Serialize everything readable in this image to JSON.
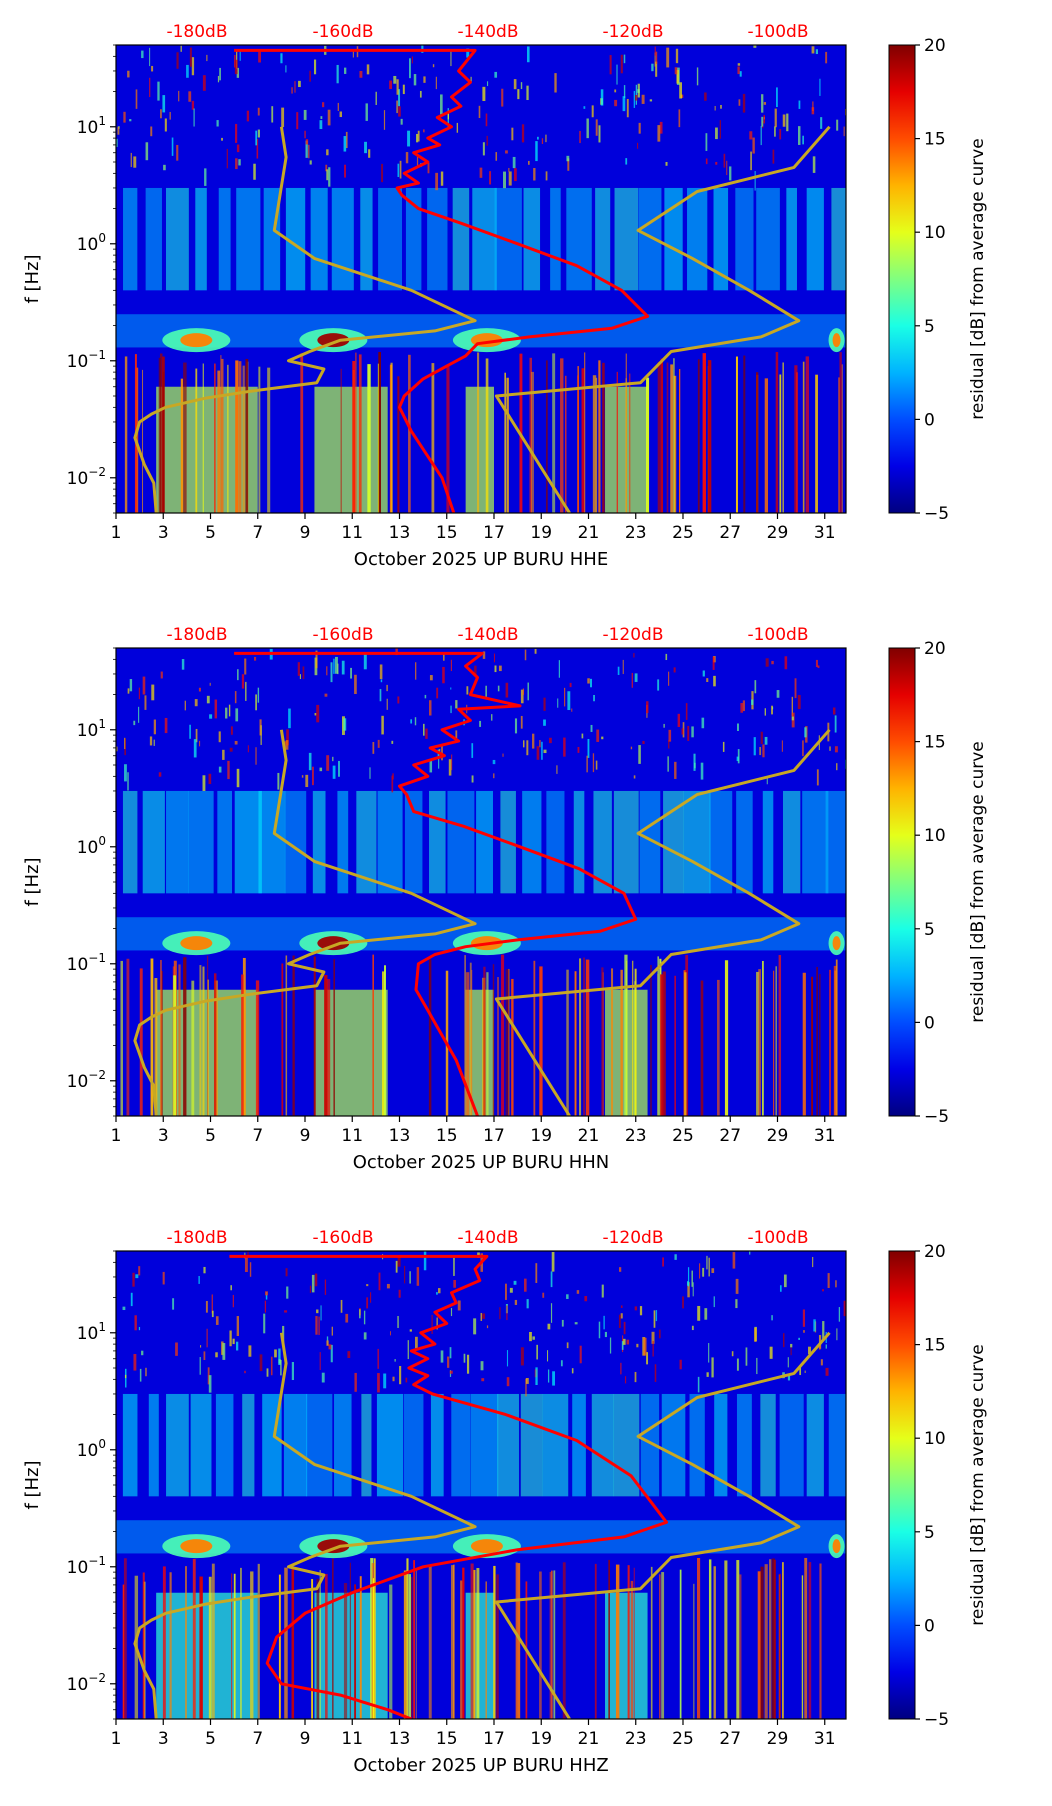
{
  "chart_data": [
    {
      "type": "heatmap",
      "xlabel": "October 2025 UP BURU  HHE",
      "ylabel": "f [Hz]",
      "x_ticks": [
        1,
        3,
        5,
        7,
        9,
        11,
        13,
        15,
        17,
        19,
        21,
        23,
        25,
        27,
        29,
        31
      ],
      "x_range": [
        1,
        31.9
      ],
      "y_scale": "log",
      "y_range": [
        0.005,
        50
      ],
      "y_ticks": [
        {
          "base": "10",
          "exp": "1",
          "value": 10
        },
        {
          "base": "10",
          "exp": "0",
          "value": 1
        },
        {
          "base": "10",
          "exp": "−1",
          "value": 0.1
        },
        {
          "base": "10",
          "exp": "−2",
          "value": 0.01
        }
      ],
      "top_axis": {
        "labels": [
          "-180dB",
          "-160dB",
          "-140dB",
          "-120dB",
          "-100dB"
        ],
        "color": "#ff0000"
      },
      "colorbar": {
        "label": "residual [dB] from average curve",
        "range": [
          -5,
          20
        ],
        "ticks": [
          "20",
          "15",
          "10",
          "5",
          "0",
          "−5"
        ],
        "colormap": "jet"
      },
      "series": [
        {
          "color": "#c8a824",
          "x": [
            8.0,
            8.2,
            7.7,
            9.4,
            13.5,
            16.2,
            14.5,
            10.5,
            9.2,
            8.3,
            9.8,
            9.5,
            6.7,
            4.8,
            3.1,
            2.5,
            2.0,
            1.8,
            2.2,
            2.6,
            2.7
          ],
          "y": [
            10,
            5.5,
            1.3,
            0.75,
            0.4,
            0.22,
            0.18,
            0.15,
            0.12,
            0.1,
            0.085,
            0.065,
            0.055,
            0.048,
            0.04,
            0.035,
            0.03,
            0.022,
            0.013,
            0.009,
            0.005
          ]
        },
        {
          "color": "#c8a824",
          "x": [
            31.2,
            29.7,
            25.6,
            23.1,
            25.4,
            27.8,
            29.9,
            28.3,
            24.5,
            23.2,
            17.1,
            17.1,
            20.2
          ],
          "y": [
            10,
            4.5,
            2.8,
            1.3,
            0.75,
            0.4,
            0.22,
            0.16,
            0.12,
            0.065,
            0.05,
            0.05,
            0.005
          ]
        },
        {
          "color": "#ff0000",
          "x": [
            6.0,
            16.2,
            15.5,
            16.0,
            15.2,
            15.6,
            14.6,
            15.2,
            14.2,
            14.7,
            13.6,
            14.2,
            13.2,
            13.8,
            12.9,
            13.1,
            13.8,
            15.6,
            18.0,
            20.5,
            22.4,
            23.5,
            22.0,
            18.5,
            16.3,
            15.8,
            15.0,
            14.0,
            13.2,
            13.0,
            13.5,
            14.8,
            15.3
          ],
          "y": [
            45,
            45,
            30,
            24,
            18,
            15,
            12,
            10,
            8,
            7,
            6,
            5,
            4,
            3.3,
            3.0,
            2.6,
            2.0,
            1.5,
            1.0,
            0.65,
            0.4,
            0.24,
            0.19,
            0.16,
            0.14,
            0.11,
            0.09,
            0.07,
            0.05,
            0.04,
            0.025,
            0.01,
            0.005
          ]
        }
      ]
    },
    {
      "type": "heatmap",
      "xlabel": "October 2025 UP BURU  HHN",
      "ylabel": "f [Hz]",
      "x_ticks": [
        1,
        3,
        5,
        7,
        9,
        11,
        13,
        15,
        17,
        19,
        21,
        23,
        25,
        27,
        29,
        31
      ],
      "x_range": [
        1,
        31.9
      ],
      "y_scale": "log",
      "y_range": [
        0.005,
        50
      ],
      "y_ticks": [
        {
          "base": "10",
          "exp": "1",
          "value": 10
        },
        {
          "base": "10",
          "exp": "0",
          "value": 1
        },
        {
          "base": "10",
          "exp": "−1",
          "value": 0.1
        },
        {
          "base": "10",
          "exp": "−2",
          "value": 0.01
        }
      ],
      "top_axis": {
        "labels": [
          "-180dB",
          "-160dB",
          "-140dB",
          "-120dB",
          "-100dB"
        ],
        "color": "#ff0000"
      },
      "colorbar": {
        "label": "residual [dB] from average curve",
        "range": [
          -5,
          20
        ],
        "ticks": [
          "20",
          "15",
          "10",
          "5",
          "0",
          "−5"
        ],
        "colormap": "jet"
      },
      "series": [
        {
          "color": "#c8a824",
          "x": [
            8.0,
            8.2,
            7.7,
            9.4,
            13.5,
            16.2,
            14.5,
            10.5,
            9.2,
            8.3,
            9.8,
            9.5,
            6.7,
            4.8,
            3.1,
            2.5,
            2.0,
            1.8,
            2.2,
            2.6,
            2.7
          ],
          "y": [
            10,
            5.5,
            1.3,
            0.75,
            0.4,
            0.22,
            0.18,
            0.15,
            0.12,
            0.1,
            0.085,
            0.065,
            0.055,
            0.048,
            0.04,
            0.035,
            0.03,
            0.022,
            0.013,
            0.009,
            0.005
          ]
        },
        {
          "color": "#c8a824",
          "x": [
            31.2,
            29.7,
            25.6,
            23.1,
            25.4,
            27.8,
            29.9,
            28.3,
            24.5,
            23.2,
            17.1,
            17.1,
            20.2
          ],
          "y": [
            10,
            4.5,
            2.8,
            1.3,
            0.75,
            0.4,
            0.22,
            0.16,
            0.12,
            0.065,
            0.05,
            0.05,
            0.005
          ]
        },
        {
          "color": "#ff0000",
          "x": [
            6.0,
            16.5,
            15.8,
            16.3,
            16.0,
            18.1,
            15.5,
            16.0,
            14.8,
            15.5,
            14.3,
            14.9,
            13.6,
            14.2,
            13.0,
            13.3,
            13.6,
            15.7,
            18.1,
            20.6,
            22.5,
            23.0,
            21.5,
            18.0,
            15.8,
            14.5,
            13.8,
            13.7,
            14.2,
            15.4,
            16.3
          ],
          "y": [
            45,
            45,
            35,
            28,
            20,
            16,
            15,
            12,
            10,
            8,
            7,
            6,
            5,
            4,
            3.3,
            2.8,
            2.0,
            1.5,
            1.0,
            0.65,
            0.4,
            0.24,
            0.19,
            0.16,
            0.14,
            0.12,
            0.1,
            0.06,
            0.04,
            0.015,
            0.005
          ]
        }
      ]
    },
    {
      "type": "heatmap",
      "xlabel": "October 2025 UP BURU  HHZ",
      "ylabel": "f [Hz]",
      "x_ticks": [
        1,
        3,
        5,
        7,
        9,
        11,
        13,
        15,
        17,
        19,
        21,
        23,
        25,
        27,
        29,
        31
      ],
      "x_range": [
        1,
        31.9
      ],
      "y_scale": "log",
      "y_range": [
        0.005,
        50
      ],
      "y_ticks": [
        {
          "base": "10",
          "exp": "1",
          "value": 10
        },
        {
          "base": "10",
          "exp": "0",
          "value": 1
        },
        {
          "base": "10",
          "exp": "−1",
          "value": 0.1
        },
        {
          "base": "10",
          "exp": "−2",
          "value": 0.01
        }
      ],
      "top_axis": {
        "labels": [
          "-180dB",
          "-160dB",
          "-140dB",
          "-120dB",
          "-100dB"
        ],
        "color": "#ff0000"
      },
      "colorbar": {
        "label": "residual [dB] from average curve",
        "range": [
          -5,
          20
        ],
        "ticks": [
          "20",
          "15",
          "10",
          "5",
          "0",
          "−5"
        ],
        "colormap": "jet"
      },
      "series": [
        {
          "color": "#c8a824",
          "x": [
            8.0,
            8.2,
            7.7,
            9.4,
            13.5,
            16.2,
            14.5,
            10.5,
            9.2,
            8.3,
            9.8,
            9.5,
            6.7,
            4.8,
            3.1,
            2.5,
            2.0,
            1.8,
            2.2,
            2.6,
            2.7
          ],
          "y": [
            10,
            5.5,
            1.3,
            0.75,
            0.4,
            0.22,
            0.18,
            0.15,
            0.12,
            0.1,
            0.085,
            0.065,
            0.055,
            0.048,
            0.04,
            0.035,
            0.03,
            0.022,
            0.013,
            0.009,
            0.005
          ]
        },
        {
          "color": "#c8a824",
          "x": [
            31.2,
            29.7,
            25.6,
            23.1,
            25.4,
            27.8,
            29.9,
            28.3,
            24.5,
            23.2,
            17.1,
            17.1,
            20.2
          ],
          "y": [
            10,
            4.5,
            2.8,
            1.3,
            0.75,
            0.4,
            0.22,
            0.16,
            0.12,
            0.065,
            0.05,
            0.05,
            0.005
          ]
        },
        {
          "color": "#ff0000",
          "x": [
            5.8,
            16.7,
            16.2,
            16.4,
            15.2,
            15.4,
            14.5,
            15.0,
            13.9,
            14.5,
            13.5,
            14.2,
            13.4,
            14.2,
            13.6,
            14.4,
            17.5,
            20.5,
            22.8,
            24.3,
            22.5,
            18.0,
            14.0,
            11.0,
            9.0,
            7.8,
            7.4,
            8.0,
            10.5,
            12.5,
            13.5
          ],
          "y": [
            45,
            45,
            35,
            28,
            22,
            18,
            15,
            12,
            10,
            8,
            7,
            6,
            5,
            4.3,
            3.6,
            3.0,
            2.0,
            1.2,
            0.6,
            0.24,
            0.18,
            0.14,
            0.1,
            0.06,
            0.04,
            0.025,
            0.015,
            0.01,
            0.008,
            0.006,
            0.005
          ]
        }
      ]
    }
  ]
}
